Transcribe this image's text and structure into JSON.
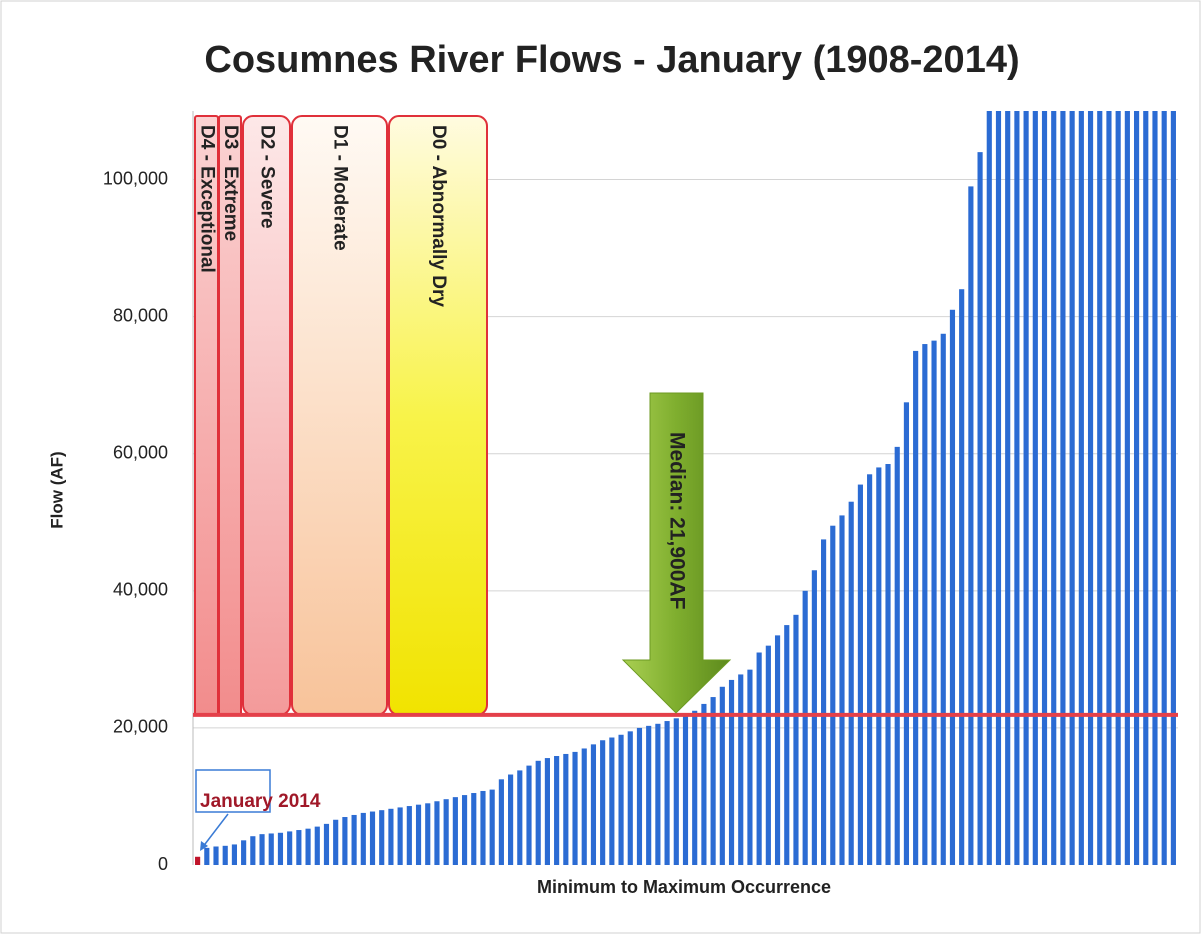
{
  "chart_data": {
    "type": "bar",
    "title": "Cosumnes River Flows - January (1908-2014)",
    "x_label": "Minimum to Maximum Occurrence",
    "y_label": "Flow (AF)",
    "ylim": [
      0,
      110000
    ],
    "yticks": [
      0,
      {
        "value": 20000,
        "label": "20,000"
      },
      {
        "value": 40000,
        "label": "40,000"
      },
      {
        "value": 60000,
        "label": "60,000"
      },
      {
        "value": 80000,
        "label": "80,000"
      },
      {
        "value": 100000,
        "label": "100,000"
      }
    ],
    "grid": true,
    "color": "#2b6bd3",
    "highlight_color": "#c0142a",
    "values": [
      1200,
      2500,
      2700,
      2800,
      3000,
      3600,
      4200,
      4500,
      4600,
      4700,
      4900,
      5100,
      5300,
      5600,
      6000,
      6600,
      7000,
      7300,
      7600,
      7800,
      8000,
      8200,
      8400,
      8600,
      8800,
      9000,
      9300,
      9600,
      9900,
      10200,
      10500,
      10800,
      11000,
      12500,
      13200,
      13800,
      14500,
      15200,
      15600,
      15900,
      16200,
      16500,
      17000,
      17600,
      18200,
      18600,
      19000,
      19500,
      20000,
      20300,
      20600,
      21000,
      21400,
      21900,
      22500,
      23500,
      24500,
      26000,
      27000,
      27800,
      28500,
      31000,
      32000,
      33500,
      35000,
      36500,
      40000,
      43000,
      47500,
      49500,
      51000,
      53000,
      55500,
      57000,
      58000,
      58500,
      61000,
      67500,
      75000,
      76000,
      76500,
      77500,
      81000,
      84000,
      99000,
      104000,
      110000,
      110000,
      110000,
      110000,
      110000,
      110000,
      110000,
      110000,
      110000,
      110000,
      110000,
      110000,
      110000,
      110000,
      110000,
      110000,
      110000,
      110000,
      110000,
      110000,
      110000
    ],
    "highlight": {
      "index": 0,
      "label": "January 2014"
    },
    "median": {
      "value": 21900,
      "label": "Median: 21,900AF"
    },
    "bands": [
      "D4 - Exceptional",
      "D3 - Extreme",
      "D2 - Severe",
      "D1 - Moderate",
      "D0 - Abnormally Dry"
    ]
  }
}
